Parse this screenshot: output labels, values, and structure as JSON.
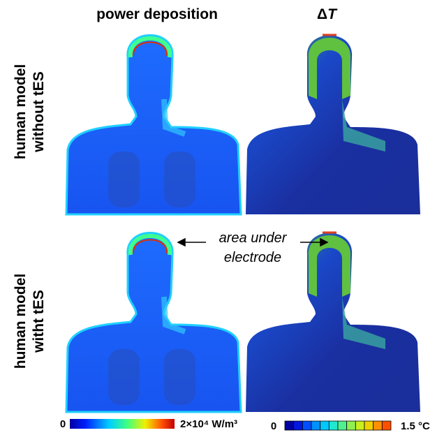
{
  "columns": [
    {
      "title": [
        "power deposition"
      ]
    },
    {
      "title": [
        "Δ",
        "T"
      ]
    }
  ],
  "rows": [
    {
      "label": [
        "human model",
        "without tES"
      ]
    },
    {
      "label": [
        "human model",
        "witht tES"
      ]
    }
  ],
  "annotation": [
    "area under",
    "electrode"
  ],
  "colorbars": [
    {
      "min": "0",
      "max": "2×10⁴ W/m³"
    },
    {
      "min": "0",
      "max": "1.5 °C"
    }
  ]
}
